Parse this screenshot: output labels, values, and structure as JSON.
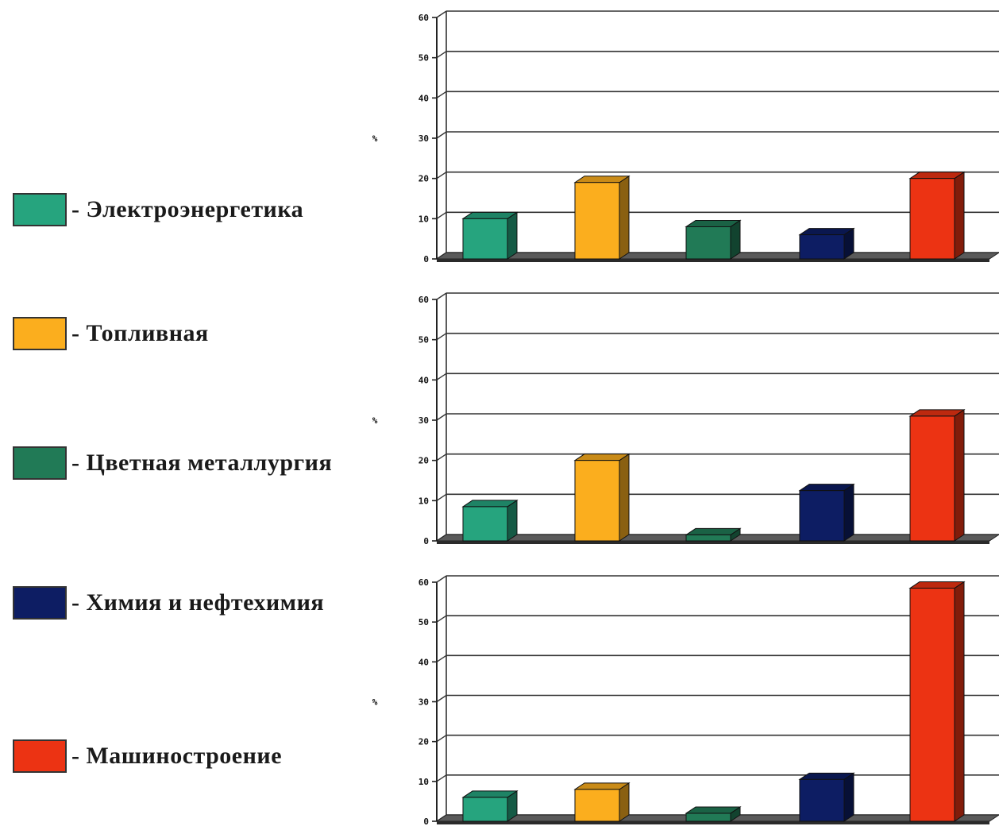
{
  "legend": [
    {
      "label": "- Электроэнергетика",
      "color": "#26A47E"
    },
    {
      "label": "- Топливная",
      "color": "#FBAE1E"
    },
    {
      "label": "- Цветная металлургия",
      "color": "#217A56"
    },
    {
      "label": "- Химия и нефтехимия",
      "color": "#0D1D63"
    },
    {
      "label": "- Машиностроение",
      "color": "#EC3313"
    }
  ],
  "chart_data": [
    {
      "type": "bar",
      "categories": [
        "Электроэнергетика",
        "Топливная",
        "Цветная металлургия",
        "Химия и нефтехимия",
        "Машиностроение"
      ],
      "values": [
        10,
        19,
        8,
        6,
        20
      ],
      "ylabel": "%",
      "ylim": [
        0,
        60
      ],
      "yticks": [
        "0",
        "10",
        "20",
        "30",
        "40",
        "50",
        "60"
      ],
      "grid": true
    },
    {
      "type": "bar",
      "categories": [
        "Электроэнергетика",
        "Топливная",
        "Цветная металлургия",
        "Химия и нефтехимия",
        "Машиностроение"
      ],
      "values": [
        8.5,
        20,
        1.5,
        12.5,
        31
      ],
      "ylabel": "%",
      "ylim": [
        0,
        60
      ],
      "yticks": [
        "0",
        "10",
        "20",
        "30",
        "40",
        "50",
        "60"
      ],
      "grid": true
    },
    {
      "type": "bar",
      "categories": [
        "Электроэнергетика",
        "Топливная",
        "Цветная металлургия",
        "Химия и нефтехимия",
        "Машиностроение"
      ],
      "values": [
        6,
        8,
        2,
        10.5,
        58.5
      ],
      "ylabel": "%",
      "ylim": [
        0,
        60
      ],
      "yticks": [
        "0",
        "10",
        "20",
        "30",
        "40",
        "50",
        "60"
      ],
      "grid": true
    }
  ]
}
